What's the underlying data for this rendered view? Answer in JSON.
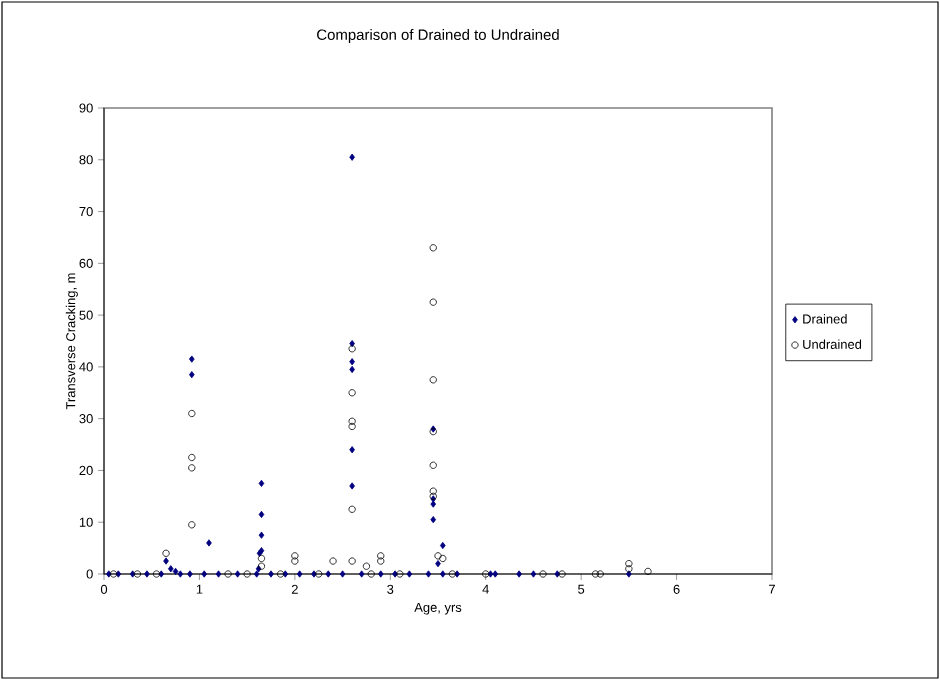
{
  "chart_data": {
    "type": "scatter",
    "title": "Comparison of Drained to Undrained",
    "xlabel": "Age, yrs",
    "ylabel": "Transverse Cracking, m",
    "xlim": [
      0,
      7
    ],
    "xticks": [
      0,
      1,
      2,
      3,
      4,
      5,
      6,
      7
    ],
    "ylim": [
      0,
      90
    ],
    "yticks": [
      0,
      10,
      20,
      30,
      40,
      50,
      60,
      70,
      80,
      90
    ],
    "grid": false,
    "legend": "right",
    "series": [
      {
        "name": "Drained",
        "color": "#000080",
        "marker": "diamond",
        "x": [
          0.92,
          0.92,
          1.1,
          0.65,
          0.7,
          0.75,
          1.65,
          1.65,
          1.65,
          1.65,
          1.63,
          1.62,
          2.6,
          2.6,
          2.6,
          2.6,
          2.6,
          2.6,
          3.45,
          3.45,
          3.45,
          3.45,
          3.55,
          3.5,
          0.05,
          0.15,
          0.3,
          0.45,
          0.6,
          0.8,
          0.9,
          1.05,
          1.2,
          1.4,
          1.6,
          1.75,
          1.9,
          2.05,
          2.2,
          2.35,
          2.5,
          2.7,
          2.9,
          3.05,
          3.2,
          3.4,
          3.55,
          3.7,
          4.05,
          4.1,
          4.35,
          4.5,
          4.75,
          5.5
        ],
        "values": [
          41.5,
          38.5,
          6,
          2.5,
          1,
          0.5,
          17.5,
          11.5,
          7.5,
          4.5,
          4,
          1,
          80.5,
          44.5,
          41,
          39.5,
          24,
          17,
          28,
          14.5,
          13.5,
          10.5,
          5.5,
          2,
          0,
          0,
          0,
          0,
          0,
          0,
          0,
          0,
          0,
          0,
          0,
          0,
          0,
          0,
          0,
          0,
          0,
          0,
          0,
          0,
          0,
          0,
          0,
          0,
          0,
          0,
          0,
          0,
          0,
          0
        ]
      },
      {
        "name": "Undrained",
        "color": "#000000",
        "marker": "circle",
        "x": [
          0.92,
          0.92,
          0.92,
          0.92,
          0.65,
          1.65,
          1.65,
          2.0,
          2.0,
          2.4,
          2.6,
          2.6,
          2.6,
          2.6,
          2.6,
          2.6,
          2.75,
          2.9,
          2.9,
          3.45,
          3.45,
          3.45,
          3.45,
          3.45,
          3.45,
          3.45,
          3.5,
          3.55,
          0.1,
          0.35,
          0.55,
          1.3,
          1.5,
          1.85,
          2.25,
          2.8,
          3.1,
          3.65,
          4.0,
          4.6,
          4.8,
          5.15,
          5.2,
          5.5,
          5.5,
          5.7
        ],
        "values": [
          31,
          22.5,
          20.5,
          9.5,
          4,
          3,
          1.5,
          3.5,
          2.5,
          2.5,
          43.5,
          35,
          29.5,
          28.5,
          12.5,
          2.5,
          1.5,
          3.5,
          2.5,
          63,
          52.5,
          37.5,
          27.5,
          21,
          16,
          15,
          3.5,
          3,
          0,
          0,
          0,
          0,
          0,
          0,
          0,
          0,
          0,
          0,
          0,
          0,
          0,
          0,
          0,
          2,
          1,
          0.5
        ]
      }
    ]
  }
}
